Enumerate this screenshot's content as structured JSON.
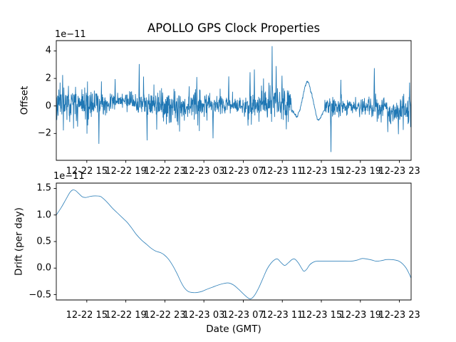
{
  "figure_title": "APOLLO GPS Clock Properties",
  "chart_data": [
    {
      "type": "line",
      "name": "offset-vs-time",
      "title": "APOLLO GPS Clock Properties",
      "ylabel": "Offset",
      "xlabel": "",
      "offset_text": "1e−11",
      "line_color": "#1f77b4",
      "ylim": [
        -3.95,
        4.75
      ],
      "grid": false,
      "legend": "none",
      "yticks": [
        {
          "v": -2,
          "label": "−2"
        },
        {
          "v": 0,
          "label": "0"
        },
        {
          "v": 2,
          "label": "2"
        },
        {
          "v": 4,
          "label": "4"
        }
      ],
      "xticks": {
        "positions": [
          0.086,
          0.196,
          0.306,
          0.416,
          0.527,
          0.637,
          0.747,
          0.857,
          0.967
        ],
        "labels": [
          "12-22 15",
          "12-22 19",
          "12-22 23",
          "12-23 03",
          "12-23 07",
          "12-23 11",
          "12-23 15",
          "12-23 19",
          "12-23 23"
        ]
      },
      "series": {
        "kind": "noise",
        "description": "dense noisy clock-offset trace, mean ~0, std ~0.45e-11, with isolated spikes and one smooth interpolated wave segment",
        "n": 1400,
        "seed": 11,
        "std": 0.45,
        "baseline_offset": 0.05,
        "baseline_waves": [
          [
            0.2,
            10.7,
            0.7
          ],
          [
            0.13,
            27.0,
            2.3
          ],
          [
            0.1,
            5.1,
            0.0
          ]
        ],
        "amp_waves": [
          [
            0.35,
            19.5,
            1.0
          ]
        ],
        "boost": {
          "from": 0.53,
          "to": 0.61,
          "factor": 1.35
        },
        "outlier_prob": 0.025,
        "outlier_scale": 2.2,
        "noise_clamp": [
          -2.4,
          2.5
        ],
        "spikes": [
          [
            0.018,
            2.25
          ],
          [
            0.06,
            -1.5
          ],
          [
            0.12,
            -2.75
          ],
          [
            0.166,
            1.95
          ],
          [
            0.234,
            3.05
          ],
          [
            0.256,
            -2.5
          ],
          [
            0.396,
            2.1
          ],
          [
            0.442,
            -2.35
          ],
          [
            0.486,
            2.15
          ],
          [
            0.546,
            2.45
          ],
          [
            0.558,
            2.65
          ],
          [
            0.584,
            2.0
          ],
          [
            0.608,
            4.35
          ],
          [
            0.62,
            2.9
          ],
          [
            0.636,
            2.2
          ],
          [
            0.648,
            -1.7
          ],
          [
            0.774,
            -3.35
          ],
          [
            0.802,
            1.9
          ],
          [
            0.896,
            2.75
          ],
          [
            0.934,
            -1.9
          ],
          [
            0.964,
            -2.05
          ],
          [
            0.996,
            1.7
          ]
        ],
        "smooth_segment": {
          "from": 0.664,
          "to": 0.756,
          "noise_std": 0.05,
          "shape": [
            [
              0.664,
              -0.3
            ],
            [
              0.672,
              -0.6
            ],
            [
              0.678,
              -0.85
            ],
            [
              0.686,
              -0.3
            ],
            [
              0.694,
              0.55
            ],
            [
              0.7,
              1.3
            ],
            [
              0.706,
              1.85
            ],
            [
              0.712,
              1.6
            ],
            [
              0.72,
              0.85
            ],
            [
              0.727,
              0.0
            ],
            [
              0.733,
              -0.7
            ],
            [
              0.738,
              -1.05
            ],
            [
              0.744,
              -0.9
            ],
            [
              0.75,
              -0.55
            ],
            [
              0.756,
              -0.3
            ]
          ]
        }
      }
    },
    {
      "type": "line",
      "name": "drift-vs-time",
      "title": "",
      "ylabel": "Drift (per day)",
      "xlabel": "Date (GMT)",
      "offset_text": "1e−11",
      "line_color": "#1f77b4",
      "ylim": [
        -0.6,
        1.6
      ],
      "grid": false,
      "legend": "none",
      "yticks": [
        {
          "v": -0.5,
          "label": "−0.5"
        },
        {
          "v": 0.0,
          "label": "0.0"
        },
        {
          "v": 0.5,
          "label": "0.5"
        },
        {
          "v": 1.0,
          "label": "1.0"
        },
        {
          "v": 1.5,
          "label": "1.5"
        }
      ],
      "xticks": {
        "positions": [
          0.086,
          0.196,
          0.306,
          0.416,
          0.527,
          0.637,
          0.747,
          0.857,
          0.967
        ],
        "labels": [
          "12-22 15",
          "12-22 19",
          "12-22 23",
          "12-23 03",
          "12-23 07",
          "12-23 11",
          "12-23 15",
          "12-23 19",
          "12-23 23"
        ]
      },
      "series": {
        "kind": "points",
        "points": [
          [
            0.0,
            1.0
          ],
          [
            0.014,
            1.14
          ],
          [
            0.026,
            1.28
          ],
          [
            0.038,
            1.42
          ],
          [
            0.046,
            1.47
          ],
          [
            0.054,
            1.46
          ],
          [
            0.064,
            1.4
          ],
          [
            0.074,
            1.34
          ],
          [
            0.084,
            1.33
          ],
          [
            0.096,
            1.35
          ],
          [
            0.11,
            1.36
          ],
          [
            0.124,
            1.35
          ],
          [
            0.134,
            1.3
          ],
          [
            0.146,
            1.22
          ],
          [
            0.158,
            1.13
          ],
          [
            0.172,
            1.04
          ],
          [
            0.186,
            0.95
          ],
          [
            0.2,
            0.86
          ],
          [
            0.214,
            0.74
          ],
          [
            0.226,
            0.63
          ],
          [
            0.24,
            0.53
          ],
          [
            0.254,
            0.45
          ],
          [
            0.266,
            0.38
          ],
          [
            0.28,
            0.32
          ],
          [
            0.294,
            0.29
          ],
          [
            0.304,
            0.25
          ],
          [
            0.316,
            0.17
          ],
          [
            0.328,
            0.05
          ],
          [
            0.34,
            -0.1
          ],
          [
            0.352,
            -0.27
          ],
          [
            0.362,
            -0.38
          ],
          [
            0.372,
            -0.44
          ],
          [
            0.384,
            -0.46
          ],
          [
            0.396,
            -0.46
          ],
          [
            0.41,
            -0.44
          ],
          [
            0.424,
            -0.4
          ],
          [
            0.44,
            -0.36
          ],
          [
            0.456,
            -0.32
          ],
          [
            0.472,
            -0.29
          ],
          [
            0.486,
            -0.28
          ],
          [
            0.5,
            -0.32
          ],
          [
            0.514,
            -0.4
          ],
          [
            0.528,
            -0.49
          ],
          [
            0.54,
            -0.56
          ],
          [
            0.548,
            -0.58
          ],
          [
            0.558,
            -0.52
          ],
          [
            0.57,
            -0.38
          ],
          [
            0.582,
            -0.2
          ],
          [
            0.594,
            -0.02
          ],
          [
            0.606,
            0.1
          ],
          [
            0.616,
            0.16
          ],
          [
            0.624,
            0.17
          ],
          [
            0.634,
            0.1
          ],
          [
            0.644,
            0.05
          ],
          [
            0.654,
            0.1
          ],
          [
            0.664,
            0.16
          ],
          [
            0.672,
            0.17
          ],
          [
            0.682,
            0.1
          ],
          [
            0.692,
            -0.01
          ],
          [
            0.698,
            -0.06
          ],
          [
            0.706,
            -0.02
          ],
          [
            0.714,
            0.06
          ],
          [
            0.724,
            0.11
          ],
          [
            0.736,
            0.13
          ],
          [
            0.772,
            0.13
          ],
          [
            0.812,
            0.13
          ],
          [
            0.832,
            0.13
          ],
          [
            0.848,
            0.15
          ],
          [
            0.862,
            0.18
          ],
          [
            0.876,
            0.17
          ],
          [
            0.89,
            0.15
          ],
          [
            0.902,
            0.13
          ],
          [
            0.916,
            0.14
          ],
          [
            0.93,
            0.16
          ],
          [
            0.944,
            0.16
          ],
          [
            0.956,
            0.15
          ],
          [
            0.966,
            0.13
          ],
          [
            0.976,
            0.08
          ],
          [
            0.986,
            0.0
          ],
          [
            0.994,
            -0.1
          ],
          [
            1.0,
            -0.19
          ]
        ]
      }
    }
  ]
}
